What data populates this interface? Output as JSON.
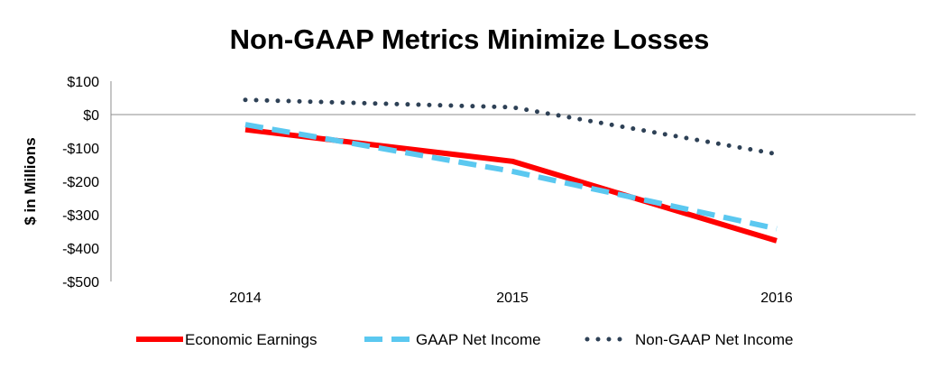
{
  "chart_data": {
    "type": "line",
    "title": "Non-GAAP Metrics Minimize Losses",
    "xlabel": "",
    "ylabel": "$ in Millions",
    "categories": [
      "2014",
      "2015",
      "2016"
    ],
    "ylim": [
      -500,
      100
    ],
    "yticks": [
      100,
      0,
      -100,
      -200,
      -300,
      -400,
      -500
    ],
    "ytick_labels": [
      "$100",
      "$0",
      "-$100",
      "-$200",
      "-$300",
      "-$400",
      "-$500"
    ],
    "grid": false,
    "legend_position": "bottom",
    "series": [
      {
        "name": "Economic Earnings",
        "values": [
          -45,
          -140,
          -378
        ],
        "color": "#ff0000",
        "style": "solid"
      },
      {
        "name": "GAAP Net Income",
        "values": [
          -30,
          -170,
          -342
        ],
        "color": "#5bc8f0",
        "style": "dashed"
      },
      {
        "name": "Non-GAAP Net Income",
        "values": [
          44,
          22,
          -118
        ],
        "color": "#2e4156",
        "style": "dotted"
      }
    ]
  }
}
